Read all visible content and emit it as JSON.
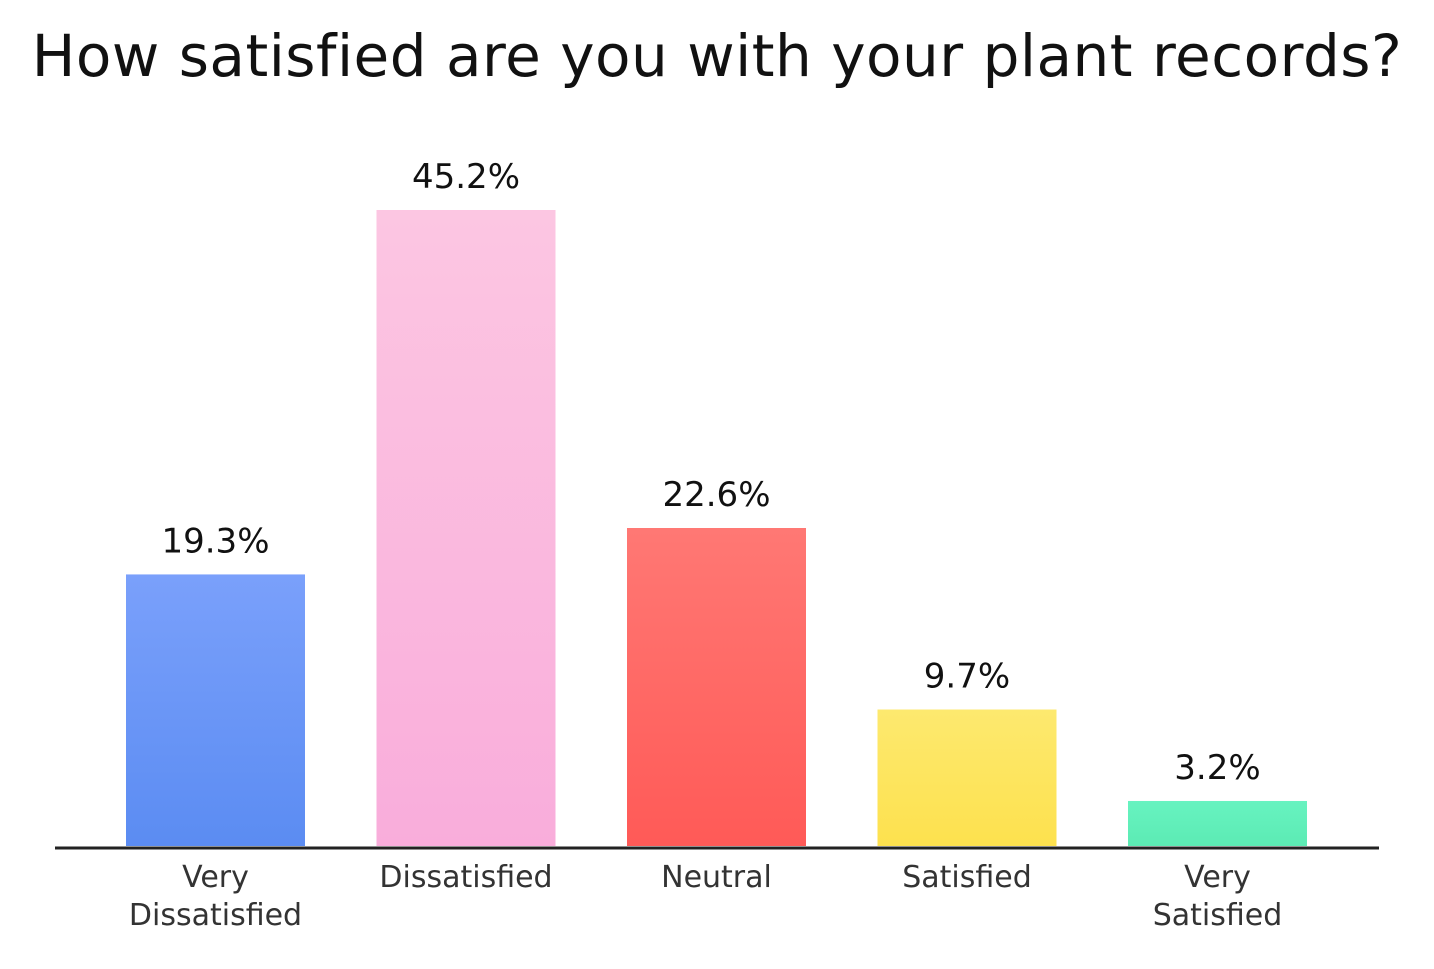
{
  "chart_data": {
    "type": "bar",
    "title": "How satisfied are you with your plant records?",
    "categories": [
      [
        "Very",
        "Dissatisfied"
      ],
      [
        "Dissatisfied"
      ],
      [
        "Neutral"
      ],
      [
        "Satisfied"
      ],
      [
        "Very",
        "Satisfied"
      ]
    ],
    "values": [
      19.3,
      45.2,
      22.6,
      9.7,
      3.2
    ],
    "value_labels": [
      "19.3%",
      "45.2%",
      "22.6%",
      "9.7%",
      "3.2%"
    ],
    "colors": [
      [
        "#7aa0fb",
        "#5b8cf2"
      ],
      [
        "#fcc6e2",
        "#f9addb"
      ],
      [
        "#ff7874",
        "#ff5a57"
      ],
      [
        "#fde96f",
        "#fde14e"
      ],
      [
        "#67f3c0",
        "#5cebb4"
      ]
    ],
    "xlabel": "",
    "ylabel": "",
    "ylim": [
      0,
      45.2
    ],
    "grid": false,
    "legend": "none"
  }
}
